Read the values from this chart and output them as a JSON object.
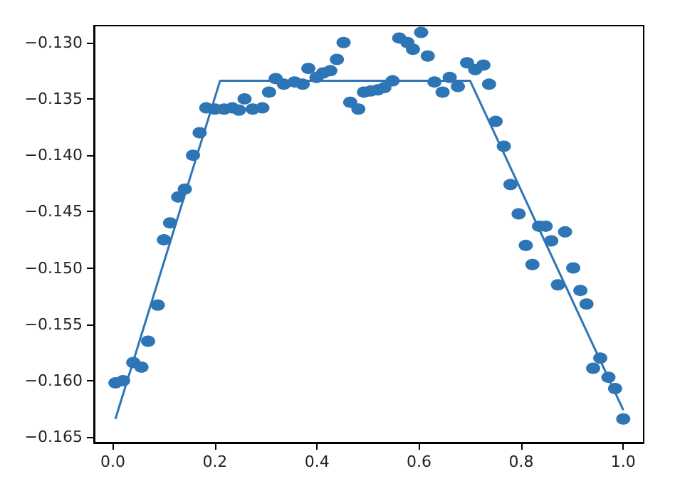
{
  "chart_data": {
    "type": "scatter",
    "grid": false,
    "marker": "circle",
    "xlim": [
      -0.037,
      1.04
    ],
    "ylim": [
      -0.1655,
      -0.1285
    ],
    "xticks": [
      {
        "value": 0,
        "label": "0.0"
      },
      {
        "value": 0.2,
        "label": "0.2"
      },
      {
        "value": 0.4,
        "label": "0.4"
      },
      {
        "value": 0.6,
        "label": "0.6"
      },
      {
        "value": 0.8,
        "label": "0.8"
      },
      {
        "value": 1,
        "label": "1.0"
      }
    ],
    "yticks": [
      {
        "value": -0.165,
        "label": "−0.165"
      },
      {
        "value": -0.16,
        "label": "−0.160"
      },
      {
        "value": -0.155,
        "label": "−0.155"
      },
      {
        "value": -0.15,
        "label": "−0.150"
      },
      {
        "value": -0.145,
        "label": "−0.145"
      },
      {
        "value": -0.14,
        "label": "−0.140"
      },
      {
        "value": -0.135,
        "label": "−0.135"
      },
      {
        "value": -0.13,
        "label": "−0.130"
      }
    ],
    "series": [
      {
        "color": "#2e75b6",
        "x": [
          0.005,
          0.02,
          0.04,
          0.056,
          0.069,
          0.088,
          0.1,
          0.112,
          0.128,
          0.141,
          0.157,
          0.17,
          0.183,
          0.2,
          0.218,
          0.234,
          0.247,
          0.258,
          0.274,
          0.293,
          0.306,
          0.319,
          0.335,
          0.356,
          0.372,
          0.383,
          0.399,
          0.412,
          0.426,
          0.439,
          0.452,
          0.465,
          0.481,
          0.492,
          0.505,
          0.519,
          0.532,
          0.548,
          0.561,
          0.577,
          0.588,
          0.604,
          0.617,
          0.63,
          0.646,
          0.66,
          0.676,
          0.694,
          0.71,
          0.726,
          0.737,
          0.75,
          0.766,
          0.779,
          0.795,
          0.809,
          0.822,
          0.835,
          0.848,
          0.859,
          0.872,
          0.886,
          0.902,
          0.916,
          0.928,
          0.941,
          0.955,
          0.971,
          0.984,
          1.0
        ],
        "values": [
          -0.1602,
          -0.16,
          -0.1584,
          -0.1588,
          -0.1565,
          -0.1533,
          -0.1475,
          -0.146,
          -0.1437,
          -0.143,
          -0.14,
          -0.138,
          -0.1358,
          -0.1359,
          -0.1359,
          -0.1358,
          -0.136,
          -0.135,
          -0.1359,
          -0.1358,
          -0.1344,
          -0.1332,
          -0.1337,
          -0.1335,
          -0.1337,
          -0.1323,
          -0.1331,
          -0.1327,
          -0.1325,
          -0.1315,
          -0.13,
          -0.1353,
          -0.1359,
          -0.1344,
          -0.1343,
          -0.1342,
          -0.134,
          -0.1334,
          -0.1296,
          -0.13,
          -0.1306,
          -0.1291,
          -0.1312,
          -0.1335,
          -0.1344,
          -0.1331,
          -0.1339,
          -0.1318,
          -0.1324,
          -0.132,
          -0.1337,
          -0.137,
          -0.1392,
          -0.1426,
          -0.1452,
          -0.148,
          -0.1497,
          -0.1463,
          -0.1463,
          -0.1476,
          -0.1515,
          -0.1468,
          -0.15,
          -0.152,
          -0.1532,
          -0.1589,
          -0.158,
          -0.1597,
          -0.1607,
          -0.1634
        ]
      },
      {
        "type": "line",
        "color": "#2e75b6",
        "marker": "none",
        "x": [
          0.005,
          0.21,
          0.7,
          1.0
        ],
        "values": [
          -0.1634,
          -0.1334,
          -0.1334,
          -0.1626
        ]
      }
    ]
  }
}
